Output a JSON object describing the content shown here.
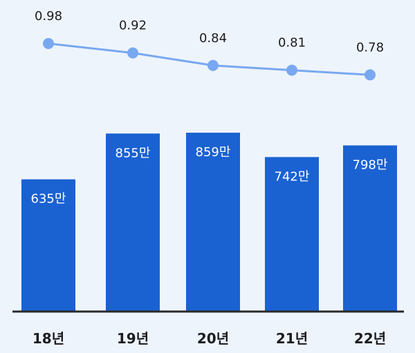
{
  "chart_data": {
    "type": "bar",
    "categories": [
      "18년",
      "19년",
      "20년",
      "21년",
      "22년"
    ],
    "series": [
      {
        "type": "bar",
        "values": [
          635,
          855,
          859,
          742,
          798
        ],
        "labels": [
          "635만",
          "855만",
          "859만",
          "742만",
          "798만"
        ],
        "color": "#1a62d2"
      },
      {
        "type": "line",
        "values": [
          0.98,
          0.92,
          0.84,
          0.81,
          0.78
        ],
        "labels": [
          "0.98",
          "0.92",
          "0.84",
          "0.81",
          "0.78"
        ],
        "color": "#78a8f0"
      }
    ],
    "bar_ylim": [
      0,
      1000
    ],
    "line_ylim": [
      0.5,
      1.0
    ],
    "title": "",
    "xlabel": "",
    "ylabel": "",
    "grid": false,
    "legend": "none"
  }
}
